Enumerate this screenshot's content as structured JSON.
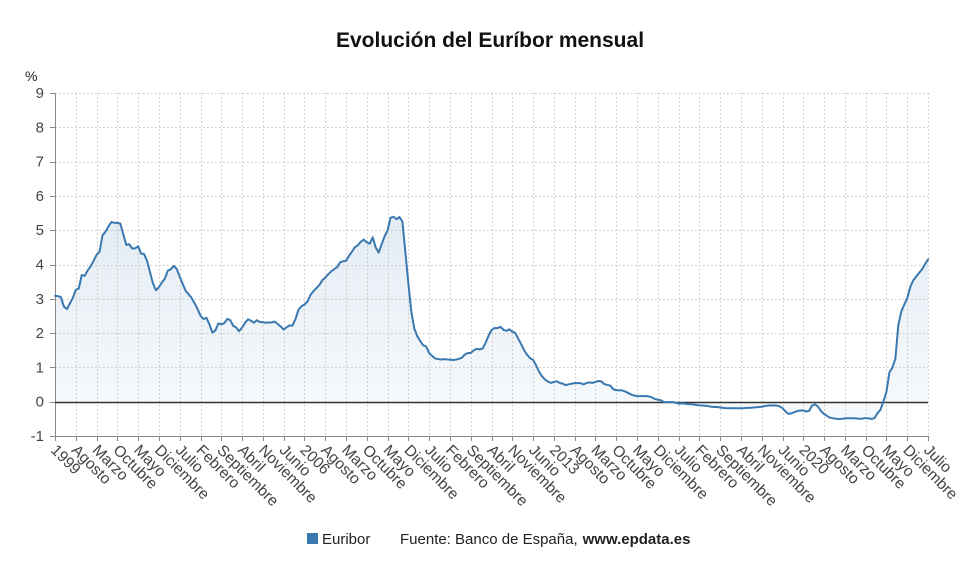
{
  "colors": {
    "series": "#3a78b0",
    "area_top": "rgba(58,120,176,0.14)",
    "area_bottom": "rgba(58,120,176,0.04)",
    "zero_line": "#333333",
    "grid": "#c4c4c4"
  },
  "footer": {
    "source_label": "Fuente: Banco de España,",
    "source_site": "www.epdata.es"
  },
  "chart_data": {
    "type": "line",
    "title": "Evolución del Euríbor mensual",
    "ylabel": "%",
    "xlabel": "",
    "ylim": [
      -1,
      9
    ],
    "xlim": [
      "1999-01",
      "2023-07"
    ],
    "yticks": [
      9,
      8,
      7,
      6,
      5,
      4,
      3,
      2,
      1,
      0,
      -1
    ],
    "grid": true,
    "area_fill": true,
    "legend_position": "bottom-center",
    "xticks": [
      {
        "at": "1999-01",
        "label": "1999"
      },
      {
        "at": "1999-08",
        "label": "Agosto"
      },
      {
        "at": "2000-03",
        "label": "Marzo"
      },
      {
        "at": "2000-10",
        "label": "Octubre"
      },
      {
        "at": "2001-05",
        "label": "Mayo"
      },
      {
        "at": "2001-12",
        "label": "Diciembre"
      },
      {
        "at": "2002-07",
        "label": "Julio"
      },
      {
        "at": "2003-02",
        "label": "Febrero"
      },
      {
        "at": "2003-09",
        "label": "Septiembre"
      },
      {
        "at": "2004-04",
        "label": "Abril"
      },
      {
        "at": "2004-11",
        "label": "Noviembre"
      },
      {
        "at": "2005-06",
        "label": "Junio"
      },
      {
        "at": "2006-01",
        "label": "2006"
      },
      {
        "at": "2006-08",
        "label": "Agosto"
      },
      {
        "at": "2007-03",
        "label": "Marzo"
      },
      {
        "at": "2007-10",
        "label": "Octubre"
      },
      {
        "at": "2008-05",
        "label": "Mayo"
      },
      {
        "at": "2008-12",
        "label": "Diciembre"
      },
      {
        "at": "2009-07",
        "label": "Julio"
      },
      {
        "at": "2010-02",
        "label": "Febrero"
      },
      {
        "at": "2010-09",
        "label": "Septiembre"
      },
      {
        "at": "2011-04",
        "label": "Abril"
      },
      {
        "at": "2011-11",
        "label": "Noviembre"
      },
      {
        "at": "2012-06",
        "label": "Junio"
      },
      {
        "at": "2013-01",
        "label": "2013"
      },
      {
        "at": "2013-08",
        "label": "Agosto"
      },
      {
        "at": "2014-03",
        "label": "Marzo"
      },
      {
        "at": "2014-10",
        "label": "Octubre"
      },
      {
        "at": "2015-05",
        "label": "Mayo"
      },
      {
        "at": "2015-12",
        "label": "Diciembre"
      },
      {
        "at": "2016-07",
        "label": "Julio"
      },
      {
        "at": "2017-02",
        "label": "Febrero"
      },
      {
        "at": "2017-09",
        "label": "Septiembre"
      },
      {
        "at": "2018-04",
        "label": "Abril"
      },
      {
        "at": "2018-11",
        "label": "Noviembre"
      },
      {
        "at": "2019-06",
        "label": "Junio"
      },
      {
        "at": "2020-01",
        "label": "2020"
      },
      {
        "at": "2020-08",
        "label": "Agosto"
      },
      {
        "at": "2021-03",
        "label": "Marzo"
      },
      {
        "at": "2021-10",
        "label": "Octubre"
      },
      {
        "at": "2022-05",
        "label": "Mayo"
      },
      {
        "at": "2022-12",
        "label": "Diciembre"
      },
      {
        "at": "2023-07",
        "label": "Julio"
      }
    ],
    "x": [
      "1999-01",
      "1999-02",
      "1999-03",
      "1999-04",
      "1999-05",
      "1999-06",
      "1999-07",
      "1999-08",
      "1999-09",
      "1999-10",
      "1999-11",
      "1999-12",
      "2000-01",
      "2000-02",
      "2000-03",
      "2000-04",
      "2000-05",
      "2000-06",
      "2000-07",
      "2000-08",
      "2000-09",
      "2000-10",
      "2000-11",
      "2000-12",
      "2001-01",
      "2001-02",
      "2001-03",
      "2001-04",
      "2001-05",
      "2001-06",
      "2001-07",
      "2001-08",
      "2001-09",
      "2001-10",
      "2001-11",
      "2001-12",
      "2002-01",
      "2002-02",
      "2002-03",
      "2002-04",
      "2002-05",
      "2002-06",
      "2002-07",
      "2002-08",
      "2002-09",
      "2002-10",
      "2002-11",
      "2002-12",
      "2003-01",
      "2003-02",
      "2003-03",
      "2003-04",
      "2003-05",
      "2003-06",
      "2003-07",
      "2003-08",
      "2003-09",
      "2003-10",
      "2003-11",
      "2003-12",
      "2004-01",
      "2004-02",
      "2004-03",
      "2004-04",
      "2004-05",
      "2004-06",
      "2004-07",
      "2004-08",
      "2004-09",
      "2004-10",
      "2004-11",
      "2004-12",
      "2005-01",
      "2005-02",
      "2005-03",
      "2005-04",
      "2005-05",
      "2005-06",
      "2005-07",
      "2005-08",
      "2005-09",
      "2005-10",
      "2005-11",
      "2005-12",
      "2006-01",
      "2006-02",
      "2006-03",
      "2006-04",
      "2006-05",
      "2006-06",
      "2006-07",
      "2006-08",
      "2006-09",
      "2006-10",
      "2006-11",
      "2006-12",
      "2007-01",
      "2007-02",
      "2007-03",
      "2007-04",
      "2007-05",
      "2007-06",
      "2007-07",
      "2007-08",
      "2007-09",
      "2007-10",
      "2007-11",
      "2007-12",
      "2008-01",
      "2008-02",
      "2008-03",
      "2008-04",
      "2008-05",
      "2008-06",
      "2008-07",
      "2008-08",
      "2008-09",
      "2008-10",
      "2008-11",
      "2008-12",
      "2009-01",
      "2009-02",
      "2009-03",
      "2009-04",
      "2009-05",
      "2009-06",
      "2009-07",
      "2009-08",
      "2009-09",
      "2009-10",
      "2009-11",
      "2009-12",
      "2010-01",
      "2010-02",
      "2010-03",
      "2010-04",
      "2010-05",
      "2010-06",
      "2010-07",
      "2010-08",
      "2010-09",
      "2010-10",
      "2010-11",
      "2010-12",
      "2011-01",
      "2011-02",
      "2011-03",
      "2011-04",
      "2011-05",
      "2011-06",
      "2011-07",
      "2011-08",
      "2011-09",
      "2011-10",
      "2011-11",
      "2011-12",
      "2012-01",
      "2012-02",
      "2012-03",
      "2012-04",
      "2012-05",
      "2012-06",
      "2012-07",
      "2012-08",
      "2012-09",
      "2012-10",
      "2012-11",
      "2012-12",
      "2013-01",
      "2013-02",
      "2013-03",
      "2013-04",
      "2013-05",
      "2013-06",
      "2013-07",
      "2013-08",
      "2013-09",
      "2013-10",
      "2013-11",
      "2013-12",
      "2014-01",
      "2014-02",
      "2014-03",
      "2014-04",
      "2014-05",
      "2014-06",
      "2014-07",
      "2014-08",
      "2014-09",
      "2014-10",
      "2014-11",
      "2014-12",
      "2015-01",
      "2015-02",
      "2015-03",
      "2015-04",
      "2015-05",
      "2015-06",
      "2015-07",
      "2015-08",
      "2015-09",
      "2015-10",
      "2015-11",
      "2015-12",
      "2016-01",
      "2016-02",
      "2016-03",
      "2016-04",
      "2016-05",
      "2016-06",
      "2016-07",
      "2016-08",
      "2016-09",
      "2016-10",
      "2016-11",
      "2016-12",
      "2017-01",
      "2017-02",
      "2017-03",
      "2017-04",
      "2017-05",
      "2017-06",
      "2017-07",
      "2017-08",
      "2017-09",
      "2017-10",
      "2017-11",
      "2017-12",
      "2018-01",
      "2018-02",
      "2018-03",
      "2018-04",
      "2018-05",
      "2018-06",
      "2018-07",
      "2018-08",
      "2018-09",
      "2018-10",
      "2018-11",
      "2018-12",
      "2019-01",
      "2019-02",
      "2019-03",
      "2019-04",
      "2019-05",
      "2019-06",
      "2019-07",
      "2019-08",
      "2019-09",
      "2019-10",
      "2019-11",
      "2019-12",
      "2020-01",
      "2020-02",
      "2020-03",
      "2020-04",
      "2020-05",
      "2020-06",
      "2020-07",
      "2020-08",
      "2020-09",
      "2020-10",
      "2020-11",
      "2020-12",
      "2021-01",
      "2021-02",
      "2021-03",
      "2021-04",
      "2021-05",
      "2021-06",
      "2021-07",
      "2021-08",
      "2021-09",
      "2021-10",
      "2021-11",
      "2021-12",
      "2022-01",
      "2022-02",
      "2022-03",
      "2022-04",
      "2022-05",
      "2022-06",
      "2022-07",
      "2022-08",
      "2022-09",
      "2022-10",
      "2022-11",
      "2022-12",
      "2023-01",
      "2023-02",
      "2023-03",
      "2023-04",
      "2023-05",
      "2023-06",
      "2023-07"
    ],
    "series": [
      {
        "name": "Euribor",
        "values": [
          3.087,
          3.078,
          3.046,
          2.774,
          2.702,
          2.862,
          3.026,
          3.262,
          3.297,
          3.692,
          3.673,
          3.828,
          3.949,
          4.108,
          4.281,
          4.372,
          4.853,
          4.955,
          5.109,
          5.237,
          5.216,
          5.214,
          5.191,
          4.879,
          4.573,
          4.59,
          4.468,
          4.473,
          4.531,
          4.316,
          4.305,
          4.108,
          3.773,
          3.446,
          3.251,
          3.34,
          3.48,
          3.588,
          3.82,
          3.859,
          3.959,
          3.869,
          3.645,
          3.435,
          3.233,
          3.133,
          3.023,
          2.872,
          2.705,
          2.504,
          2.411,
          2.447,
          2.252,
          2.014,
          2.076,
          2.279,
          2.258,
          2.29,
          2.411,
          2.381,
          2.215,
          2.163,
          2.055,
          2.163,
          2.297,
          2.404,
          2.361,
          2.302,
          2.377,
          2.32,
          2.321,
          2.301,
          2.312,
          2.31,
          2.335,
          2.265,
          2.193,
          2.103,
          2.168,
          2.223,
          2.22,
          2.414,
          2.684,
          2.783,
          2.833,
          2.914,
          3.105,
          3.221,
          3.308,
          3.401,
          3.539,
          3.615,
          3.715,
          3.799,
          3.864,
          3.921,
          4.064,
          4.094,
          4.106,
          4.253,
          4.373,
          4.505,
          4.564,
          4.666,
          4.725,
          4.647,
          4.607,
          4.793,
          4.498,
          4.349,
          4.59,
          4.82,
          4.994,
          5.361,
          5.393,
          5.323,
          5.384,
          5.248,
          4.35,
          3.452,
          2.622,
          2.135,
          1.909,
          1.771,
          1.644,
          1.61,
          1.412,
          1.334,
          1.261,
          1.243,
          1.231,
          1.242,
          1.232,
          1.225,
          1.215,
          1.225,
          1.249,
          1.281,
          1.373,
          1.421,
          1.42,
          1.495,
          1.541,
          1.526,
          1.55,
          1.714,
          1.924,
          2.086,
          2.147,
          2.144,
          2.183,
          2.097,
          2.067,
          2.11,
          2.044,
          2.004,
          1.837,
          1.678,
          1.499,
          1.368,
          1.266,
          1.219,
          1.061,
          0.877,
          0.74,
          0.65,
          0.588,
          0.549,
          0.575,
          0.594,
          0.545,
          0.528,
          0.484,
          0.507,
          0.525,
          0.542,
          0.543,
          0.541,
          0.506,
          0.543,
          0.562,
          0.549,
          0.577,
          0.604,
          0.592,
          0.513,
          0.488,
          0.469,
          0.362,
          0.338,
          0.335,
          0.329,
          0.298,
          0.255,
          0.212,
          0.18,
          0.165,
          0.163,
          0.167,
          0.161,
          0.154,
          0.128,
          0.079,
          0.059,
          0.042,
          -0.008,
          -0.012,
          -0.01,
          -0.013,
          -0.028,
          -0.056,
          -0.048,
          -0.057,
          -0.069,
          -0.074,
          -0.08,
          -0.095,
          -0.106,
          -0.11,
          -0.119,
          -0.127,
          -0.149,
          -0.154,
          -0.156,
          -0.168,
          -0.18,
          -0.189,
          -0.19,
          -0.189,
          -0.191,
          -0.191,
          -0.19,
          -0.188,
          -0.181,
          -0.18,
          -0.169,
          -0.166,
          -0.154,
          -0.147,
          -0.129,
          -0.116,
          -0.108,
          -0.109,
          -0.112,
          -0.134,
          -0.19,
          -0.283,
          -0.356,
          -0.339,
          -0.304,
          -0.272,
          -0.261,
          -0.253,
          -0.288,
          -0.266,
          -0.108,
          -0.081,
          -0.147,
          -0.279,
          -0.359,
          -0.415,
          -0.466,
          -0.481,
          -0.497,
          -0.505,
          -0.501,
          -0.487,
          -0.484,
          -0.481,
          -0.484,
          -0.491,
          -0.498,
          -0.492,
          -0.477,
          -0.487,
          -0.502,
          -0.477,
          -0.335,
          -0.237,
          0.013,
          0.287,
          0.852,
          0.992,
          1.249,
          2.233,
          2.629,
          2.828,
          3.018,
          3.337,
          3.534,
          3.647,
          3.757,
          3.862,
          4.007,
          4.149
        ]
      }
    ]
  }
}
